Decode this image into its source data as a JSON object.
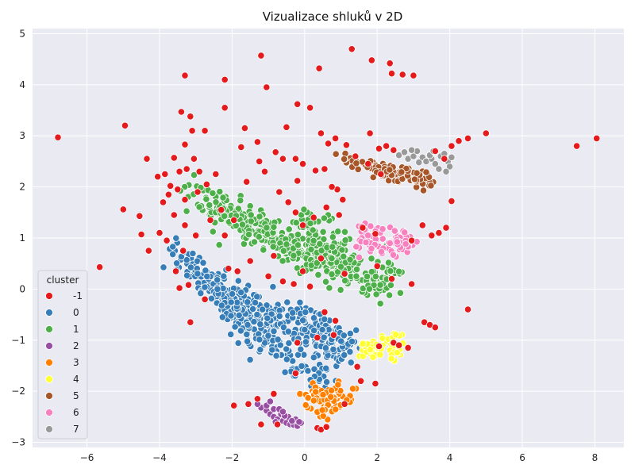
{
  "chart_data": {
    "type": "scatter",
    "title": "Vizualizace shluků v 2D",
    "xlabel": "",
    "ylabel": "",
    "xlim": [
      -7.5,
      8.8
    ],
    "ylim": [
      -3.1,
      5.1
    ],
    "x_ticks": [
      -6,
      -4,
      -2,
      0,
      2,
      4,
      6,
      8
    ],
    "y_ticks": [
      -3,
      -2,
      -1,
      0,
      1,
      2,
      3,
      4,
      5
    ],
    "grid": true,
    "background": "#EAEAF2",
    "legend": {
      "title": "cluster",
      "placement": "bottom-left"
    },
    "series": [
      {
        "name": "-1",
        "color": "#E41A1C",
        "points": [
          [
            -6.8,
            2.97
          ],
          [
            -5.65,
            0.43
          ],
          [
            -4.95,
            3.2
          ],
          [
            -5.0,
            1.56
          ],
          [
            -4.5,
            1.07
          ],
          [
            -4.55,
            1.43
          ],
          [
            -4.35,
            2.55
          ],
          [
            -4.05,
            2.2
          ],
          [
            -3.85,
            2.25
          ],
          [
            -3.7,
            2.02
          ],
          [
            -3.6,
            2.57
          ],
          [
            -3.5,
            1.95
          ],
          [
            -3.4,
            3.47
          ],
          [
            -3.3,
            4.18
          ],
          [
            -3.3,
            2.83
          ],
          [
            -3.15,
            3.38
          ],
          [
            -3.1,
            3.1
          ],
          [
            -3.25,
            2.35
          ],
          [
            -2.75,
            3.1
          ],
          [
            -2.2,
            4.1
          ],
          [
            -2.2,
            3.55
          ],
          [
            -1.65,
            3.15
          ],
          [
            -1.2,
            4.57
          ],
          [
            -1.05,
            3.95
          ],
          [
            -1.75,
            2.78
          ],
          [
            -1.3,
            2.88
          ],
          [
            -0.5,
            3.17
          ],
          [
            -0.2,
            3.62
          ],
          [
            0.4,
            4.32
          ],
          [
            1.3,
            4.7
          ],
          [
            1.85,
            4.48
          ],
          [
            2.35,
            4.42
          ],
          [
            2.4,
            4.22
          ],
          [
            2.7,
            4.2
          ],
          [
            3.0,
            4.18
          ],
          [
            0.15,
            3.55
          ],
          [
            -0.8,
            2.68
          ],
          [
            -0.6,
            2.55
          ],
          [
            -0.25,
            2.55
          ],
          [
            -0.05,
            2.45
          ],
          [
            0.3,
            2.32
          ],
          [
            0.55,
            2.35
          ],
          [
            -3.9,
            1.7
          ],
          [
            -3.6,
            1.45
          ],
          [
            -3.3,
            1.25
          ],
          [
            -3.0,
            1.05
          ],
          [
            -2.6,
            1.35
          ],
          [
            -2.3,
            1.55
          ],
          [
            -4.0,
            1.1
          ],
          [
            -3.8,
            0.95
          ],
          [
            -4.3,
            0.75
          ],
          [
            -3.35,
            0.75
          ],
          [
            -3.55,
            0.35
          ],
          [
            -3.2,
            0.08
          ],
          [
            -3.45,
            0.02
          ],
          [
            -2.75,
            -0.2
          ],
          [
            -3.15,
            -0.65
          ],
          [
            -2.1,
            0.4
          ],
          [
            -1.85,
            0.35
          ],
          [
            -1.5,
            0.55
          ],
          [
            -1.0,
            0.25
          ],
          [
            -0.6,
            0.15
          ],
          [
            -0.3,
            0.1
          ],
          [
            0.15,
            0.05
          ],
          [
            0.55,
            -0.45
          ],
          [
            0.85,
            -0.62
          ],
          [
            1.1,
            0.3
          ],
          [
            0.8,
            -0.9
          ],
          [
            0.35,
            -0.95
          ],
          [
            -0.2,
            -1.05
          ],
          [
            1.45,
            -1.52
          ],
          [
            1.55,
            -1.8
          ],
          [
            1.95,
            -1.85
          ],
          [
            1.1,
            -2.25
          ],
          [
            -0.25,
            -1.65
          ],
          [
            -0.75,
            -2.65
          ],
          [
            -1.2,
            -2.65
          ],
          [
            -1.3,
            -2.15
          ],
          [
            -1.55,
            -2.25
          ],
          [
            -1.95,
            -2.28
          ],
          [
            -0.85,
            -2.05
          ],
          [
            0.35,
            -2.72
          ],
          [
            0.45,
            -2.75
          ],
          [
            0.6,
            -2.7
          ],
          [
            2.05,
            -1.12
          ],
          [
            2.45,
            -1.05
          ],
          [
            2.6,
            -1.1
          ],
          [
            2.85,
            -1.15
          ],
          [
            3.3,
            -0.65
          ],
          [
            3.45,
            -0.7
          ],
          [
            3.6,
            -0.75
          ],
          [
            4.5,
            -0.4
          ],
          [
            4.05,
            1.72
          ],
          [
            3.9,
            1.2
          ],
          [
            3.7,
            1.1
          ],
          [
            3.5,
            1.05
          ],
          [
            3.25,
            1.25
          ],
          [
            2.95,
            0.95
          ],
          [
            1.95,
            1.08
          ],
          [
            1.6,
            1.2
          ],
          [
            5.0,
            3.05
          ],
          [
            4.25,
            2.9
          ],
          [
            4.5,
            2.95
          ],
          [
            4.05,
            2.8
          ],
          [
            3.85,
            2.55
          ],
          [
            3.6,
            2.7
          ],
          [
            7.5,
            2.8
          ],
          [
            8.05,
            2.95
          ],
          [
            1.8,
            3.05
          ],
          [
            2.05,
            2.75
          ],
          [
            2.25,
            2.8
          ],
          [
            2.45,
            2.72
          ],
          [
            2.1,
            2.25
          ],
          [
            1.75,
            2.45
          ],
          [
            1.4,
            2.6
          ],
          [
            1.15,
            2.82
          ],
          [
            0.85,
            2.95
          ],
          [
            0.65,
            2.85
          ],
          [
            0.45,
            3.05
          ],
          [
            0.55,
            2.35
          ],
          [
            0.9,
            1.95
          ],
          [
            1.05,
            1.75
          ],
          [
            0.95,
            1.45
          ],
          [
            0.6,
            1.6
          ],
          [
            0.25,
            1.4
          ],
          [
            -0.05,
            1.25
          ],
          [
            -0.25,
            1.5
          ],
          [
            -0.45,
            1.7
          ],
          [
            -0.7,
            1.9
          ],
          [
            -1.1,
            2.3
          ],
          [
            -1.25,
            2.5
          ],
          [
            -1.6,
            2.1
          ],
          [
            -1.95,
            1.35
          ],
          [
            -2.45,
            2.25
          ],
          [
            -2.7,
            2.05
          ],
          [
            -2.95,
            1.9
          ],
          [
            -3.3,
            1.75
          ],
          [
            -2.2,
            1.05
          ],
          [
            -0.85,
            0.65
          ],
          [
            -0.05,
            0.35
          ],
          [
            0.45,
            0.6
          ],
          [
            2.0,
            0.45
          ],
          [
            2.4,
            0.2
          ],
          [
            2.95,
            0.1
          ],
          [
            0.75,
            2.0
          ],
          [
            -0.2,
            2.12
          ],
          [
            -2.9,
            2.3
          ],
          [
            -3.05,
            2.55
          ],
          [
            -3.45,
            2.3
          ],
          [
            -3.75,
            1.85
          ]
        ]
      },
      {
        "name": "0",
        "color": "#377EB8",
        "points": []
      },
      {
        "name": "1",
        "color": "#4DAF4A",
        "points": []
      },
      {
        "name": "2",
        "color": "#984EA3",
        "points": [
          [
            -1.2,
            -2.32
          ],
          [
            -1.05,
            -2.38
          ],
          [
            -0.95,
            -2.45
          ],
          [
            -0.85,
            -2.5
          ],
          [
            -0.75,
            -2.55
          ],
          [
            -0.6,
            -2.58
          ],
          [
            -0.5,
            -2.62
          ],
          [
            -0.4,
            -2.65
          ],
          [
            -0.3,
            -2.66
          ],
          [
            -0.2,
            -2.68
          ],
          [
            -0.1,
            -2.62
          ],
          [
            -0.25,
            -2.55
          ],
          [
            -0.45,
            -2.5
          ],
          [
            -0.65,
            -2.45
          ],
          [
            -0.85,
            -2.35
          ],
          [
            -1.05,
            -2.28
          ],
          [
            -0.95,
            -2.2
          ],
          [
            -0.7,
            -2.35
          ],
          [
            -0.55,
            -2.48
          ],
          [
            -0.35,
            -2.58
          ],
          [
            -0.15,
            -2.6
          ],
          [
            -1.3,
            -2.25
          ],
          [
            -0.8,
            -2.6
          ],
          [
            -0.6,
            -2.4
          ]
        ]
      },
      {
        "name": "3",
        "color": "#FF7F00",
        "points": []
      },
      {
        "name": "4",
        "color": "#FFFF33",
        "points": []
      },
      {
        "name": "5",
        "color": "#A65628",
        "points": []
      },
      {
        "name": "6",
        "color": "#F781BF",
        "points": []
      },
      {
        "name": "7",
        "color": "#999999",
        "points": [
          [
            2.6,
            2.62
          ],
          [
            2.75,
            2.68
          ],
          [
            2.85,
            2.55
          ],
          [
            3.0,
            2.6
          ],
          [
            3.1,
            2.7
          ],
          [
            3.25,
            2.58
          ],
          [
            3.35,
            2.5
          ],
          [
            3.5,
            2.55
          ],
          [
            3.6,
            2.45
          ],
          [
            3.75,
            2.6
          ],
          [
            3.85,
            2.65
          ],
          [
            3.95,
            2.5
          ],
          [
            4.0,
            2.4
          ],
          [
            3.7,
            2.35
          ],
          [
            3.45,
            2.62
          ],
          [
            3.15,
            2.48
          ],
          [
            2.95,
            2.72
          ],
          [
            3.55,
            2.7
          ],
          [
            3.9,
            2.3
          ],
          [
            4.05,
            2.58
          ]
        ]
      }
    ],
    "generated_bands": {
      "0": [
        {
          "from": [
            -3.7,
            0.82
          ],
          "to": [
            -0.9,
            -1.0
          ],
          "n": 150,
          "spread": 0.16
        },
        {
          "from": [
            -2.4,
            0.05
          ],
          "to": [
            0.9,
            -1.25
          ],
          "n": 160,
          "spread": 0.16
        },
        {
          "from": [
            -2.1,
            -0.55
          ],
          "to": [
            0.6,
            -1.85
          ],
          "n": 90,
          "spread": 0.15
        },
        {
          "from": [
            -0.2,
            -0.45
          ],
          "to": [
            1.2,
            -1.15
          ],
          "n": 90,
          "spread": 0.17
        },
        {
          "from": [
            -2.75,
            0.4
          ],
          "to": [
            -1.6,
            -0.7
          ],
          "n": 40,
          "spread": 0.16
        }
      ],
      "1": [
        {
          "from": [
            -3.25,
            1.92
          ],
          "to": [
            1.0,
            0.4
          ],
          "n": 200,
          "spread": 0.17
        },
        {
          "from": [
            -2.3,
            1.45
          ],
          "to": [
            2.3,
            0.0
          ],
          "n": 180,
          "spread": 0.15
        },
        {
          "from": [
            -0.6,
            0.9
          ],
          "to": [
            2.55,
            0.22
          ],
          "n": 100,
          "spread": 0.16
        },
        {
          "from": [
            0.0,
            1.35
          ],
          "to": [
            1.3,
            0.45
          ],
          "n": 60,
          "spread": 0.2
        }
      ],
      "3": [
        {
          "from": [
            -0.15,
            -2.0
          ],
          "to": [
            1.25,
            -2.2
          ],
          "n": 25,
          "spread": 0.1
        },
        {
          "from": [
            0.1,
            -2.25
          ],
          "to": [
            1.4,
            -2.05
          ],
          "n": 40,
          "spread": 0.11
        },
        {
          "from": [
            0.3,
            -2.6
          ],
          "to": [
            1.0,
            -1.8
          ],
          "n": 25,
          "spread": 0.1
        }
      ],
      "4": [
        {
          "from": [
            1.4,
            -1.3
          ],
          "to": [
            2.75,
            -0.95
          ],
          "n": 30,
          "spread": 0.08
        },
        {
          "from": [
            1.6,
            -1.1
          ],
          "to": [
            2.6,
            -1.3
          ],
          "n": 30,
          "spread": 0.08
        }
      ],
      "5": [
        {
          "from": [
            1.0,
            2.55
          ],
          "to": [
            3.55,
            2.08
          ],
          "n": 55,
          "spread": 0.06
        },
        {
          "from": [
            1.9,
            2.3
          ],
          "to": [
            3.3,
            2.1
          ],
          "n": 40,
          "spread": 0.07
        },
        {
          "from": [
            2.5,
            2.3
          ],
          "to": [
            3.5,
            2.2
          ],
          "n": 20,
          "spread": 0.06
        }
      ],
      "6": [
        {
          "from": [
            1.45,
            1.2
          ],
          "to": [
            3.0,
            0.95
          ],
          "n": 45,
          "spread": 0.1
        },
        {
          "from": [
            1.5,
            0.85
          ],
          "to": [
            2.9,
            0.85
          ],
          "n": 40,
          "spread": 0.1
        }
      ]
    }
  }
}
